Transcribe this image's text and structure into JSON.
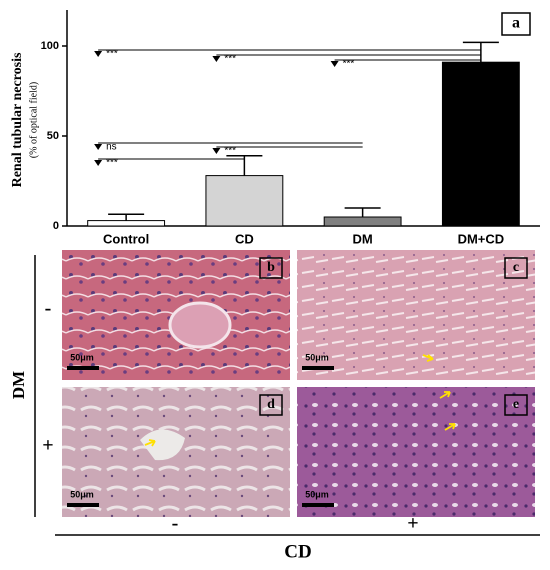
{
  "chart_data": {
    "type": "bar",
    "panel_label": "a",
    "y_label": "Renal tubular necrosis",
    "y_sublabel": "(% of optical field)",
    "categories": [
      "Control",
      "CD",
      "DM",
      "DM+CD"
    ],
    "values": [
      3,
      28,
      5,
      91
    ],
    "errors": [
      3.5,
      11,
      5,
      11
    ],
    "colors": [
      "#ffffff",
      "#d4d4d4",
      "#808080",
      "#000000"
    ],
    "ylim": [
      0,
      120
    ],
    "yticks": [
      0,
      50,
      100
    ],
    "annotations": [
      "***",
      "***",
      "***",
      "ns",
      "***",
      "***"
    ]
  },
  "panels": [
    {
      "label": "b",
      "scale": "50μm"
    },
    {
      "label": "c",
      "scale": "50μm"
    },
    {
      "label": "d",
      "scale": "50μm"
    },
    {
      "label": "e",
      "scale": "50μm"
    }
  ],
  "row_factor": {
    "name": "DM",
    "levels": [
      "-",
      "+"
    ]
  },
  "col_factor": {
    "name": "CD",
    "levels": [
      "-",
      "+"
    ]
  }
}
